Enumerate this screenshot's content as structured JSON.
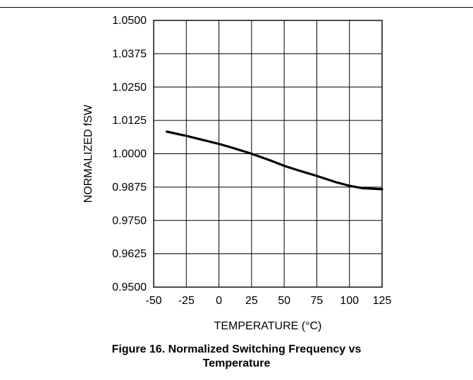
{
  "chart_data": {
    "type": "line",
    "xlabel": "TEMPERATURE (°C)",
    "ylabel": "NORMALIZED fSW",
    "xlim": [
      -50,
      125
    ],
    "ylim": [
      0.95,
      1.05
    ],
    "x_ticks": [
      "-50",
      "-25",
      "0",
      "25",
      "50",
      "75",
      "100",
      "125"
    ],
    "y_ticks": [
      "0.9500",
      "0.9625",
      "0.9750",
      "0.9875",
      "1.0000",
      "1.0125",
      "1.0250",
      "1.0375",
      "1.0500"
    ],
    "grid": true,
    "series": [
      {
        "x": [
          -40,
          -25,
          -10,
          0,
          10,
          25,
          40,
          50,
          60,
          75,
          90,
          100,
          110,
          125
        ],
        "y": [
          1.0083,
          1.0067,
          1.0049,
          1.0037,
          1.0023,
          1.0,
          0.9974,
          0.9955,
          0.9939,
          0.9917,
          0.9893,
          0.988,
          0.9871,
          0.9867
        ]
      }
    ],
    "style": {
      "line_color": "#000000",
      "grid_color": "#000000"
    }
  },
  "caption": {
    "line1": "Figure 16. Normalized Switching Frequency vs",
    "line2": "Temperature"
  }
}
